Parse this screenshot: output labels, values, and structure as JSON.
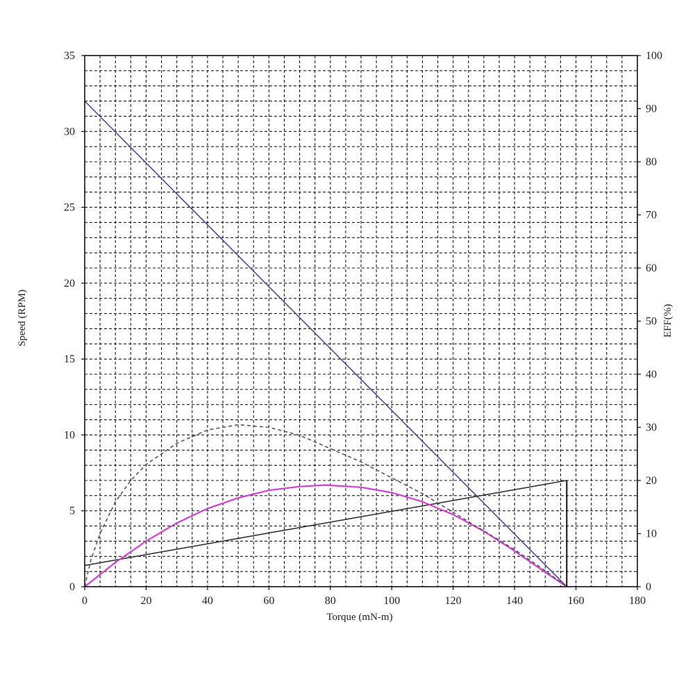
{
  "chart_data": {
    "type": "line",
    "title": "",
    "xlabel": "Torque (mN-m)",
    "ylabel": "Speed (RPM)",
    "y2label": "EFF(%)",
    "xlim": [
      0,
      180
    ],
    "ylim": [
      0,
      35
    ],
    "y2lim": [
      0,
      100
    ],
    "x_ticks": [
      0,
      20,
      40,
      60,
      80,
      100,
      120,
      140,
      160,
      180
    ],
    "y_ticks": [
      0,
      5,
      10,
      15,
      20,
      25,
      30,
      35
    ],
    "y2_ticks": [
      0,
      10,
      20,
      30,
      40,
      50,
      60,
      70,
      80,
      90,
      100
    ],
    "grid": true,
    "grid_style": "dashed",
    "legend": "none",
    "stall_torque": 157,
    "series": [
      {
        "id": "speed",
        "axis": "left",
        "color": "#4a4a9e",
        "style": "solid",
        "points": [
          [
            0,
            32
          ],
          [
            157,
            0
          ]
        ]
      },
      {
        "id": "current",
        "axis": "left",
        "color": "#333333",
        "style": "solid",
        "points": [
          [
            0,
            1.4
          ],
          [
            157,
            7
          ]
        ]
      },
      {
        "id": "output-power",
        "axis": "left",
        "color": "#d43fd4",
        "style": "solid",
        "points": [
          [
            0,
            0
          ],
          [
            10,
            1.6
          ],
          [
            20,
            3.0
          ],
          [
            30,
            4.2
          ],
          [
            40,
            5.15
          ],
          [
            50,
            5.85
          ],
          [
            60,
            6.35
          ],
          [
            70,
            6.6
          ],
          [
            78.5,
            6.7
          ],
          [
            90,
            6.55
          ],
          [
            100,
            6.2
          ],
          [
            110,
            5.6
          ],
          [
            120,
            4.75
          ],
          [
            130,
            3.65
          ],
          [
            140,
            2.35
          ],
          [
            150,
            0.95
          ],
          [
            157,
            0
          ]
        ]
      },
      {
        "id": "efficiency",
        "axis": "right",
        "color": "#555555",
        "style": "dashed",
        "points": [
          [
            0,
            0
          ],
          [
            2,
            5
          ],
          [
            5,
            10
          ],
          [
            10,
            16
          ],
          [
            15,
            20
          ],
          [
            20,
            23
          ],
          [
            30,
            27
          ],
          [
            40,
            29.5
          ],
          [
            50,
            30.5
          ],
          [
            60,
            30
          ],
          [
            70,
            28.5
          ],
          [
            80,
            26
          ],
          [
            90,
            23.5
          ],
          [
            100,
            20.5
          ],
          [
            110,
            17.5
          ],
          [
            120,
            14
          ],
          [
            130,
            10.5
          ],
          [
            140,
            7
          ],
          [
            150,
            3
          ],
          [
            157,
            0
          ]
        ]
      }
    ]
  }
}
